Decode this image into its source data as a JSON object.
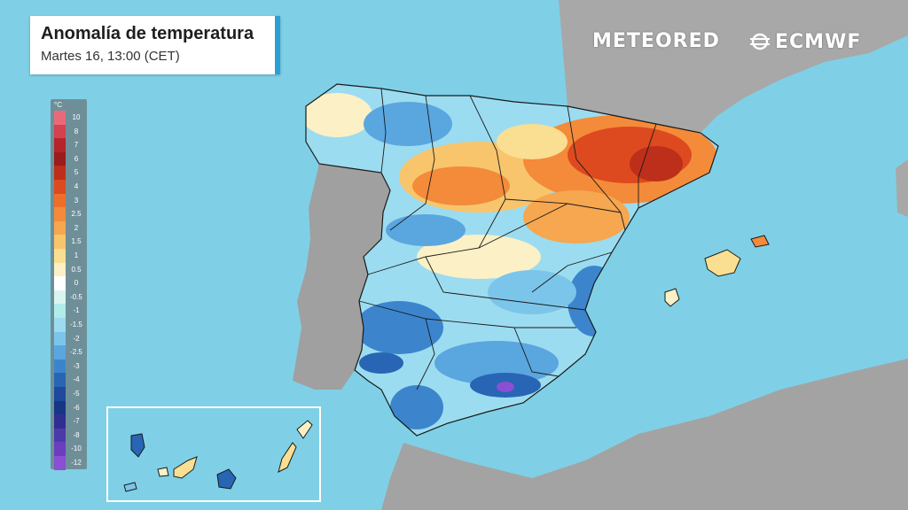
{
  "title": {
    "main": "Anomalía de temperatura",
    "sub": "Martes 16, 13:00 (CET)"
  },
  "brands": {
    "meteored": "METEORED",
    "ecmwf": "ECMWF"
  },
  "legend": {
    "unit": "°C",
    "entries": [
      {
        "label": "10",
        "color": "#e86a7a"
      },
      {
        "label": "8",
        "color": "#d2424f"
      },
      {
        "label": "7",
        "color": "#b5232c"
      },
      {
        "label": "6",
        "color": "#9a1c1c"
      },
      {
        "label": "5",
        "color": "#bd2f1a"
      },
      {
        "label": "4",
        "color": "#dd4a1f"
      },
      {
        "label": "3",
        "color": "#ee6f2a"
      },
      {
        "label": "2.5",
        "color": "#f38b3a"
      },
      {
        "label": "2",
        "color": "#f6a74f"
      },
      {
        "label": "1.5",
        "color": "#f8c56c"
      },
      {
        "label": "1",
        "color": "#fadf92"
      },
      {
        "label": "0.5",
        "color": "#fbf0c6"
      },
      {
        "label": "0",
        "color": "#ffffff"
      },
      {
        "label": "-0.5",
        "color": "#d9f5f1"
      },
      {
        "label": "-1",
        "color": "#b1ece8"
      },
      {
        "label": "-1.5",
        "color": "#9cdcf0"
      },
      {
        "label": "-2",
        "color": "#7cc5ea"
      },
      {
        "label": "-2.5",
        "color": "#5aa6df"
      },
      {
        "label": "-3",
        "color": "#3c85cd"
      },
      {
        "label": "-4",
        "color": "#2865b5"
      },
      {
        "label": "-5",
        "color": "#1d4a9c"
      },
      {
        "label": "-6",
        "color": "#163684"
      },
      {
        "label": "-7",
        "color": "#2f2f92"
      },
      {
        "label": "-8",
        "color": "#4b3aa8"
      },
      {
        "label": "-10",
        "color": "#6a3fbf"
      },
      {
        "label": "-12",
        "color": "#8a4fd2"
      }
    ]
  },
  "colors": {
    "sea": "#7fd0e6",
    "land_other": "#a3a3a3",
    "border": "#1a1a1a"
  }
}
